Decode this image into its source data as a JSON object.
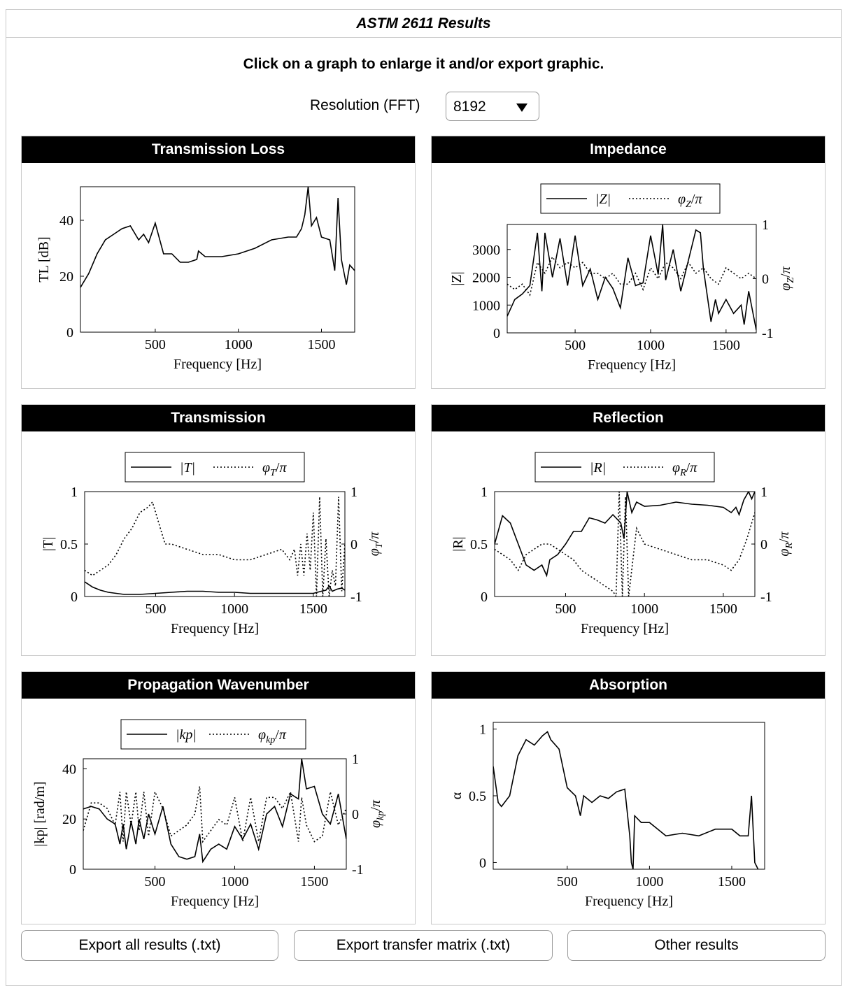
{
  "window": {
    "title": "ASTM 2611 Results"
  },
  "instructions": "Click on a graph to enlarge it and/or export graphic.",
  "resolution": {
    "label": "Resolution (FFT)",
    "value": "8192"
  },
  "buttons": {
    "export_all": "Export all results (.txt)",
    "export_matrix": "Export transfer matrix (.txt)",
    "other": "Other results"
  },
  "panels": [
    {
      "title": "Transmission Loss"
    },
    {
      "title": "Impedance"
    },
    {
      "title": "Transmission"
    },
    {
      "title": "Reflection"
    },
    {
      "title": "Propagation Wavenumber"
    },
    {
      "title": "Absorption"
    }
  ],
  "colors": {
    "header_bg": "#000000",
    "header_text": "#ffffff",
    "border": "#c9c9c9"
  },
  "chart_data": [
    {
      "type": "line",
      "title": "Transmission Loss",
      "xlabel": "Frequency [Hz]",
      "ylabel": "TL [dB]",
      "xlim": [
        50,
        1700
      ],
      "ylim": [
        0,
        52
      ],
      "xticks": [
        500,
        1000,
        1500
      ],
      "yticks": [
        0,
        20,
        40
      ],
      "series": [
        {
          "style": "solid",
          "x": [
            50,
            100,
            150,
            200,
            250,
            300,
            350,
            400,
            430,
            460,
            500,
            550,
            600,
            650,
            700,
            750,
            760,
            800,
            900,
            1000,
            1100,
            1200,
            1300,
            1350,
            1380,
            1400,
            1420,
            1440,
            1470,
            1500,
            1550,
            1580,
            1600,
            1620,
            1650,
            1670,
            1700
          ],
          "y": [
            16,
            21,
            28,
            33,
            35,
            37,
            38,
            33,
            35,
            32,
            39,
            28,
            28,
            25,
            25,
            26,
            29,
            27,
            27,
            28,
            30,
            33,
            34,
            34,
            37,
            42,
            52,
            38,
            41,
            34,
            33,
            22,
            48,
            26,
            17,
            24,
            22
          ]
        }
      ]
    },
    {
      "type": "line",
      "title": "Impedance",
      "xlabel": "Frequency [Hz]",
      "ylabel": "|Z|",
      "y2label": "φZ/π",
      "xlim": [
        50,
        1700
      ],
      "ylim": [
        0,
        3900
      ],
      "y2lim": [
        -1,
        1
      ],
      "xticks": [
        500,
        1000,
        1500
      ],
      "yticks": [
        0,
        1000,
        2000,
        3000
      ],
      "y2ticks": [
        -1,
        0,
        1
      ],
      "legend": [
        "|Z|",
        "φZ/π"
      ],
      "legend_position": "top",
      "series": [
        {
          "name": "|Z|",
          "style": "solid",
          "axis": "left",
          "x": [
            50,
            100,
            150,
            200,
            250,
            280,
            300,
            350,
            400,
            450,
            500,
            550,
            600,
            650,
            700,
            750,
            800,
            850,
            900,
            950,
            1000,
            1050,
            1080,
            1100,
            1150,
            1200,
            1250,
            1300,
            1330,
            1350,
            1400,
            1430,
            1450,
            1500,
            1550,
            1600,
            1620,
            1650,
            1700
          ],
          "y": [
            600,
            1200,
            1400,
            1700,
            3600,
            1500,
            3600,
            2000,
            3400,
            1700,
            3500,
            1700,
            2300,
            1200,
            2000,
            1600,
            900,
            2700,
            1700,
            1800,
            3500,
            2100,
            3900,
            1900,
            3000,
            1500,
            2600,
            3700,
            3600,
            2300,
            400,
            1200,
            700,
            1200,
            700,
            1000,
            300,
            1500,
            100
          ]
        },
        {
          "name": "φZ/π",
          "style": "dotted",
          "axis": "right",
          "x": [
            50,
            100,
            150,
            200,
            250,
            300,
            350,
            400,
            450,
            500,
            550,
            600,
            650,
            700,
            750,
            800,
            850,
            900,
            950,
            1000,
            1050,
            1100,
            1150,
            1200,
            1250,
            1300,
            1350,
            1400,
            1450,
            1500,
            1550,
            1600,
            1650,
            1700
          ],
          "y": [
            -0.1,
            -0.2,
            -0.1,
            -0.3,
            0.3,
            0.1,
            0.4,
            0.2,
            0.3,
            0.2,
            0.3,
            0.1,
            0.1,
            0.0,
            0.1,
            -0.1,
            -0.1,
            0.1,
            -0.2,
            0.2,
            0.0,
            0.3,
            0.2,
            0.0,
            0.3,
            0.1,
            0.2,
            0.0,
            -0.1,
            0.2,
            0.1,
            0.0,
            0.1,
            0.0
          ]
        }
      ]
    },
    {
      "type": "line",
      "title": "Transmission",
      "xlabel": "Frequency [Hz]",
      "ylabel": "|T|",
      "y2label": "φT/π",
      "xlim": [
        50,
        1700
      ],
      "ylim": [
        0,
        1
      ],
      "y2lim": [
        -1,
        1
      ],
      "xticks": [
        500,
        1000,
        1500
      ],
      "yticks": [
        0,
        0.5,
        1
      ],
      "y2ticks": [
        -1,
        0,
        1
      ],
      "legend": [
        "|T|",
        "φT/π"
      ],
      "legend_position": "top",
      "series": [
        {
          "name": "|T|",
          "style": "solid",
          "axis": "left",
          "x": [
            50,
            100,
            150,
            200,
            300,
            400,
            500,
            600,
            700,
            800,
            900,
            1000,
            1100,
            1200,
            1300,
            1400,
            1500,
            1550,
            1580,
            1600,
            1620,
            1650,
            1680,
            1700
          ],
          "y": [
            0.14,
            0.09,
            0.06,
            0.04,
            0.02,
            0.02,
            0.03,
            0.04,
            0.05,
            0.05,
            0.04,
            0.04,
            0.03,
            0.03,
            0.03,
            0.03,
            0.03,
            0.05,
            0.06,
            0.1,
            0.05,
            0.07,
            0.08,
            0.06
          ]
        },
        {
          "name": "φT/π",
          "style": "dotted",
          "axis": "right",
          "x": [
            50,
            100,
            150,
            200,
            250,
            300,
            350,
            400,
            450,
            480,
            500,
            530,
            560,
            600,
            700,
            800,
            900,
            1000,
            1100,
            1200,
            1300,
            1350,
            1380,
            1400,
            1420,
            1440,
            1460,
            1480,
            1500,
            1520,
            1540,
            1560,
            1580,
            1600,
            1620,
            1640,
            1660,
            1680,
            1700
          ],
          "y": [
            -0.5,
            -0.6,
            -0.5,
            -0.4,
            -0.2,
            0.1,
            0.3,
            0.6,
            0.7,
            0.8,
            0.6,
            0.3,
            0.0,
            0.0,
            -0.1,
            -0.2,
            -0.2,
            -0.3,
            -0.3,
            -0.2,
            -0.1,
            -0.3,
            -0.1,
            -0.6,
            0.0,
            -0.6,
            0.2,
            -0.5,
            0.6,
            -1.0,
            0.9,
            -1.0,
            0.1,
            -1.0,
            -0.5,
            -0.8,
            0.9,
            -0.9,
            0.0
          ]
        }
      ]
    },
    {
      "type": "line",
      "title": "Reflection",
      "xlabel": "Frequency [Hz]",
      "ylabel": "|R|",
      "y2label": "φR/π",
      "xlim": [
        50,
        1700
      ],
      "ylim": [
        0,
        1
      ],
      "y2lim": [
        -1,
        1
      ],
      "xticks": [
        500,
        1000,
        1500
      ],
      "yticks": [
        0,
        0.5,
        1
      ],
      "y2ticks": [
        -1,
        0,
        1
      ],
      "legend": [
        "|R|",
        "φR/π"
      ],
      "legend_position": "top",
      "series": [
        {
          "name": "|R|",
          "style": "solid",
          "axis": "left",
          "x": [
            50,
            100,
            150,
            200,
            250,
            300,
            350,
            380,
            400,
            450,
            500,
            550,
            600,
            650,
            700,
            750,
            800,
            850,
            870,
            890,
            920,
            950,
            1000,
            1100,
            1200,
            1300,
            1400,
            1500,
            1550,
            1580,
            1600,
            1630,
            1660,
            1680,
            1700
          ],
          "y": [
            0.5,
            0.77,
            0.7,
            0.5,
            0.3,
            0.25,
            0.3,
            0.2,
            0.35,
            0.4,
            0.5,
            0.62,
            0.62,
            0.75,
            0.73,
            0.7,
            0.78,
            0.7,
            0.55,
            1.0,
            0.8,
            0.9,
            0.86,
            0.87,
            0.9,
            0.88,
            0.87,
            0.85,
            0.8,
            0.85,
            0.78,
            0.92,
            1.0,
            0.93,
            1.0
          ]
        },
        {
          "name": "φR/π",
          "style": "dotted",
          "axis": "right",
          "x": [
            50,
            100,
            150,
            200,
            250,
            300,
            350,
            400,
            450,
            500,
            550,
            600,
            650,
            700,
            750,
            800,
            820,
            840,
            860,
            880,
            900,
            950,
            1000,
            1100,
            1200,
            1300,
            1400,
            1500,
            1550,
            1600,
            1650,
            1700
          ],
          "y": [
            -0.1,
            -0.2,
            -0.3,
            -0.5,
            -0.2,
            -0.1,
            0.0,
            0.0,
            -0.1,
            -0.2,
            -0.3,
            -0.5,
            -0.6,
            -0.7,
            -0.8,
            -0.9,
            -1.0,
            1.0,
            -1.0,
            0.9,
            -1.0,
            0.3,
            0.0,
            -0.1,
            -0.2,
            -0.3,
            -0.3,
            -0.4,
            -0.5,
            -0.3,
            0.1,
            0.6
          ]
        }
      ]
    },
    {
      "type": "line",
      "title": "Propagation Wavenumber",
      "xlabel": "Frequency [Hz]",
      "ylabel": "|kp| [rad/m]",
      "y2label": "φkp/π",
      "xlim": [
        50,
        1700
      ],
      "ylim": [
        0,
        44
      ],
      "y2lim": [
        -1,
        1
      ],
      "xticks": [
        500,
        1000,
        1500
      ],
      "yticks": [
        0,
        20,
        40
      ],
      "y2ticks": [
        -1,
        0,
        1
      ],
      "legend": [
        "|kp|",
        "φkp/π"
      ],
      "legend_position": "top",
      "series": [
        {
          "name": "|kp|",
          "style": "solid",
          "axis": "left",
          "x": [
            50,
            100,
            150,
            200,
            250,
            280,
            300,
            320,
            350,
            380,
            400,
            430,
            460,
            500,
            550,
            600,
            650,
            700,
            750,
            780,
            800,
            850,
            900,
            950,
            1000,
            1050,
            1100,
            1150,
            1200,
            1250,
            1300,
            1350,
            1400,
            1420,
            1450,
            1500,
            1550,
            1600,
            1650,
            1700
          ],
          "y": [
            24,
            25,
            24,
            20,
            18,
            10,
            18,
            8,
            19,
            10,
            20,
            12,
            22,
            14,
            25,
            10,
            5,
            4,
            5,
            14,
            3,
            8,
            10,
            8,
            17,
            12,
            18,
            8,
            22,
            25,
            17,
            30,
            28,
            44,
            32,
            33,
            22,
            18,
            30,
            12
          ]
        },
        {
          "name": "φkp/π",
          "style": "dotted",
          "axis": "right",
          "x": [
            50,
            100,
            150,
            200,
            250,
            280,
            300,
            320,
            350,
            380,
            400,
            430,
            460,
            500,
            550,
            600,
            650,
            700,
            750,
            780,
            800,
            850,
            900,
            950,
            1000,
            1050,
            1100,
            1150,
            1200,
            1250,
            1300,
            1350,
            1400,
            1420,
            1450,
            1500,
            1550,
            1600,
            1650,
            1700
          ],
          "y": [
            -0.3,
            0.2,
            0.2,
            0.1,
            -0.2,
            0.4,
            -0.5,
            0.4,
            -0.2,
            0.4,
            -0.3,
            0.4,
            -0.4,
            0.4,
            0.1,
            -0.4,
            -0.3,
            -0.2,
            0.0,
            0.5,
            -0.5,
            -0.3,
            -0.1,
            -0.2,
            0.3,
            -0.5,
            0.3,
            -0.5,
            0.3,
            0.3,
            0.1,
            0.4,
            -0.5,
            0.3,
            -0.2,
            -0.5,
            -0.4,
            0.4,
            -0.2,
            0.1
          ]
        }
      ]
    },
    {
      "type": "line",
      "title": "Absorption",
      "xlabel": "Frequency [Hz]",
      "ylabel": "α",
      "xlim": [
        50,
        1700
      ],
      "ylim": [
        -0.05,
        1.05
      ],
      "xticks": [
        500,
        1000,
        1500
      ],
      "yticks": [
        0,
        0.5,
        1
      ],
      "series": [
        {
          "style": "solid",
          "x": [
            50,
            80,
            100,
            150,
            200,
            250,
            300,
            350,
            380,
            400,
            450,
            500,
            550,
            580,
            600,
            650,
            700,
            750,
            800,
            850,
            880,
            890,
            900,
            910,
            950,
            1000,
            1050,
            1100,
            1200,
            1300,
            1400,
            1500,
            1550,
            1600,
            1620,
            1640,
            1660
          ],
          "y": [
            0.72,
            0.45,
            0.42,
            0.5,
            0.8,
            0.92,
            0.88,
            0.95,
            0.98,
            0.92,
            0.85,
            0.56,
            0.5,
            0.35,
            0.5,
            0.45,
            0.5,
            0.48,
            0.53,
            0.55,
            0.2,
            0.0,
            -0.05,
            0.35,
            0.3,
            0.3,
            0.25,
            0.2,
            0.22,
            0.2,
            0.25,
            0.25,
            0.2,
            0.2,
            0.5,
            0.0,
            -0.05
          ]
        }
      ]
    }
  ]
}
